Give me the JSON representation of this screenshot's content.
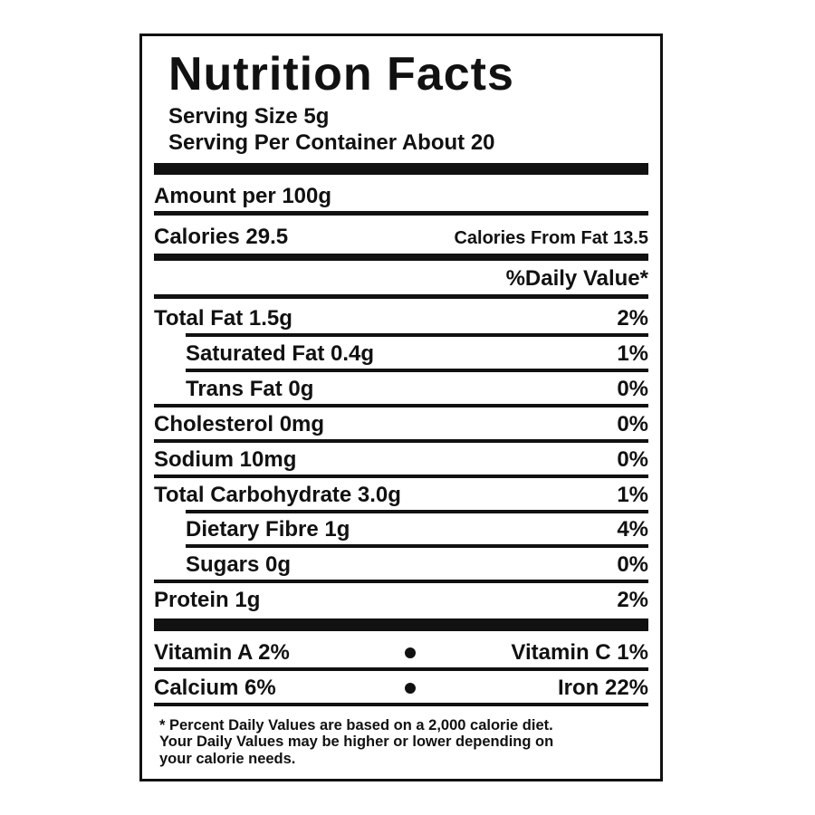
{
  "title": "Nutrition Facts",
  "serving_size": "Serving Size 5g",
  "servings_per_container": "Serving Per Container About 20",
  "amount_per": "Amount per 100g",
  "calories": "Calories 29.5",
  "calories_from_fat": "Calories From Fat 13.5",
  "daily_value_header": "%Daily Value*",
  "nutrients": [
    {
      "label": "Total Fat 1.5g",
      "daily_value": "2%",
      "indent": false
    },
    {
      "label": "Saturated Fat 0.4g",
      "daily_value": "1%",
      "indent": true
    },
    {
      "label": "Trans Fat 0g",
      "daily_value": "0%",
      "indent": true
    },
    {
      "label": "Cholesterol 0mg",
      "daily_value": "0%",
      "indent": false
    },
    {
      "label": "Sodium 10mg",
      "daily_value": "0%",
      "indent": false
    },
    {
      "label": "Total Carbohydrate 3.0g",
      "daily_value": "1%",
      "indent": false
    },
    {
      "label": "Dietary Fibre 1g",
      "daily_value": "4%",
      "indent": true
    },
    {
      "label": "Sugars 0g",
      "daily_value": "0%",
      "indent": true
    },
    {
      "label": "Protein 1g",
      "daily_value": "2%",
      "indent": false
    }
  ],
  "vitamins": [
    [
      "Vitamin A 2%",
      "Vitamin C 1%"
    ],
    [
      "Calcium 6%",
      "Iron 22%"
    ]
  ],
  "footnote": [
    "* Percent Daily Values are based on a 2,000 calorie diet.",
    "Your Daily Values may be higher or lower depending on",
    "your calorie needs."
  ]
}
